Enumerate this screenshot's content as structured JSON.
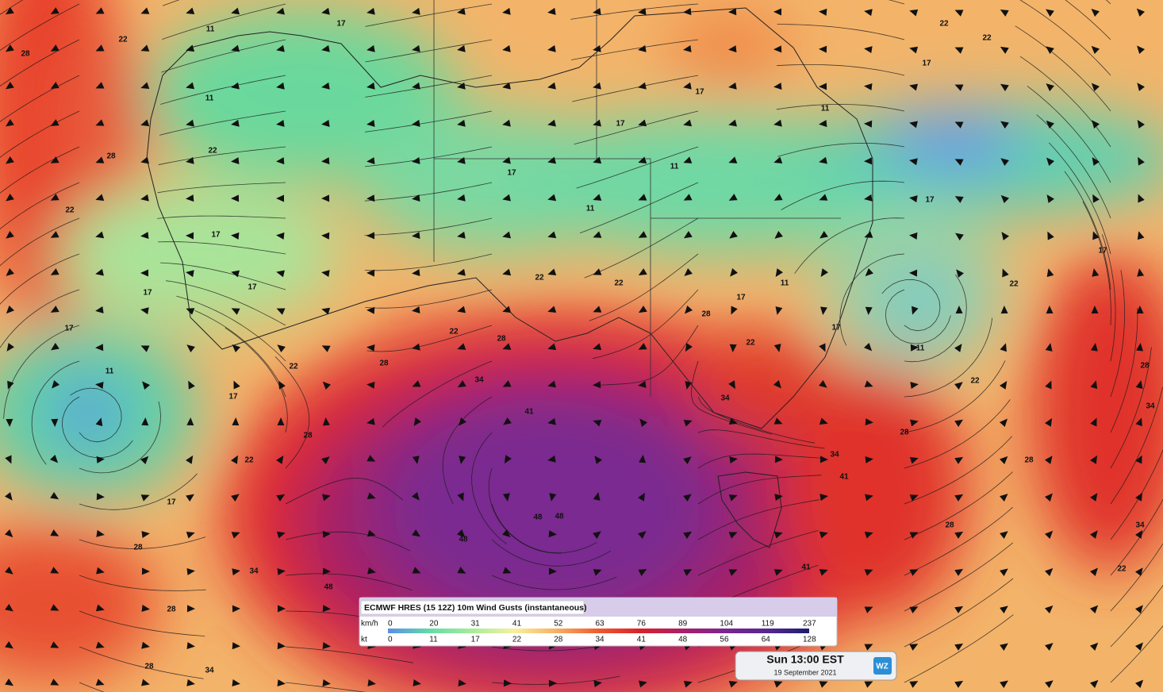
{
  "legend": {
    "title": "ECMWF HRES (15 12Z) 10m Wind Gusts (instantaneous)",
    "units": [
      "km/h",
      "kt"
    ],
    "kmh": [
      0,
      20,
      31,
      41,
      52,
      63,
      76,
      89,
      104,
      119,
      237
    ],
    "kt": [
      0,
      11,
      17,
      22,
      28,
      34,
      41,
      48,
      56,
      64,
      128
    ],
    "colors": [
      "#5a8ee8",
      "#62dca8",
      "#a8ec9a",
      "#f8f0a0",
      "#f7b062",
      "#ef5a30",
      "#d9202a",
      "#a8206a",
      "#7a2690",
      "#56288e",
      "#1e1e6e"
    ]
  },
  "time_box": {
    "time": "Sun 13:00 EST",
    "date": "19 September 2021",
    "logo": "WZ"
  },
  "contour_labels": [
    11,
    17,
    22,
    28,
    11,
    22,
    28,
    22,
    17,
    17,
    17,
    17,
    11,
    17,
    22,
    17,
    28,
    34,
    28,
    34,
    28,
    28,
    34,
    41,
    48,
    48,
    11,
    17,
    17,
    17,
    11,
    11,
    11,
    17,
    22,
    17,
    11,
    22,
    22,
    17,
    28,
    34,
    28,
    28,
    34,
    22,
    28,
    34,
    41,
    41,
    28,
    22,
    34,
    22,
    22,
    28,
    22,
    22,
    28,
    48,
    48,
    17,
    17,
    22
  ]
}
